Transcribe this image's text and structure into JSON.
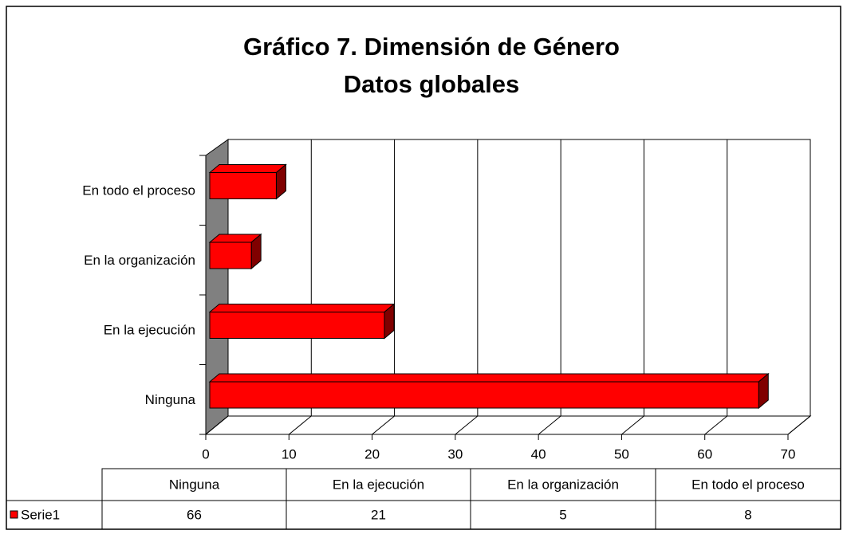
{
  "chart_data": {
    "type": "bar3d_horizontal",
    "title": "Gráfico 7. Dimensión de Género",
    "subtitle": "Datos globales",
    "categories": [
      "Ninguna",
      "En la ejecución",
      "En la organización",
      "En todo el proceso"
    ],
    "series": [
      {
        "name": "Serie1",
        "color": "#ff0000",
        "values": [
          66,
          21,
          5,
          8
        ]
      }
    ],
    "xlim": [
      0,
      70
    ],
    "xticks": [
      0,
      10,
      20,
      30,
      40,
      50,
      60,
      70
    ],
    "grid": true
  }
}
